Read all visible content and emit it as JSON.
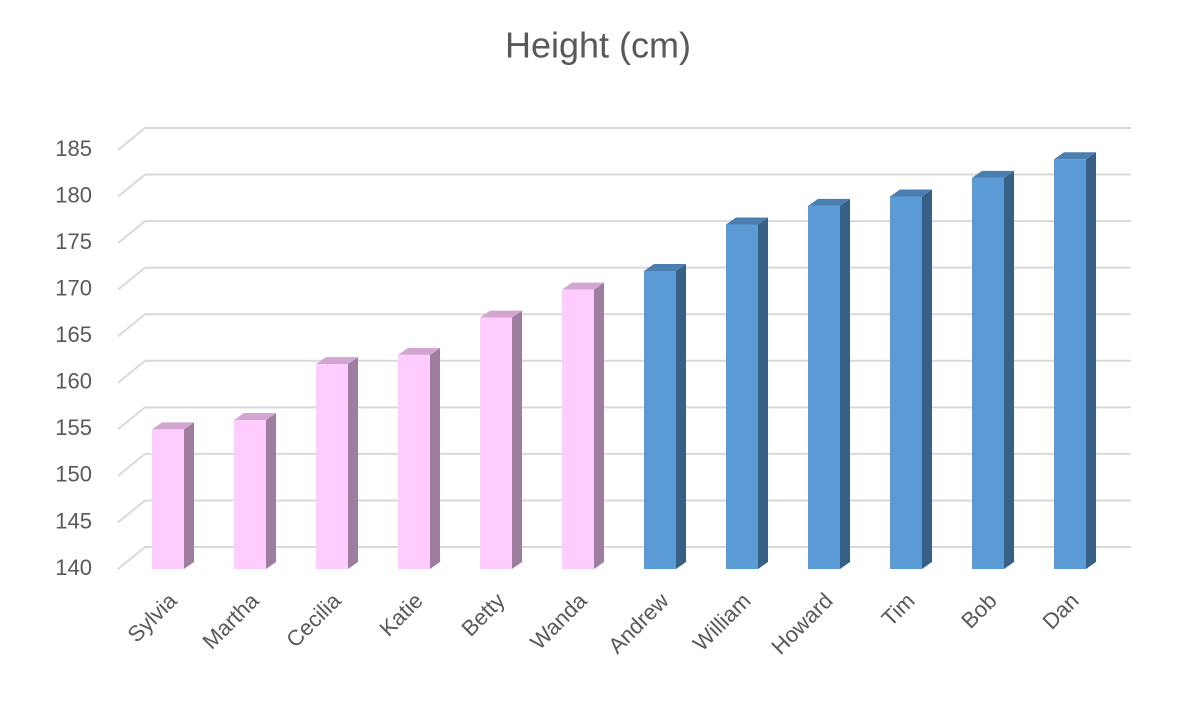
{
  "chart_data": {
    "type": "bar3d",
    "title": "Height (cm)",
    "categories": [
      "Sylvia",
      "Martha",
      "Cecilia",
      "Katie",
      "Betty",
      "Wanda",
      "Andrew",
      "William",
      "Howard",
      "Tim",
      "Bob",
      "Dan"
    ],
    "values": [
      155,
      156,
      162,
      163,
      167,
      170,
      172,
      177,
      179,
      180,
      182,
      184
    ],
    "colors": [
      "#ffccff",
      "#ffccff",
      "#ffccff",
      "#ffccff",
      "#ffccff",
      "#ffccff",
      "#5b9bd5",
      "#5b9bd5",
      "#5b9bd5",
      "#5b9bd5",
      "#5b9bd5",
      "#5b9bd5"
    ],
    "ylim": [
      140,
      185
    ],
    "yticks": [
      140,
      145,
      150,
      155,
      160,
      165,
      170,
      175,
      180,
      185
    ],
    "grid": true
  }
}
